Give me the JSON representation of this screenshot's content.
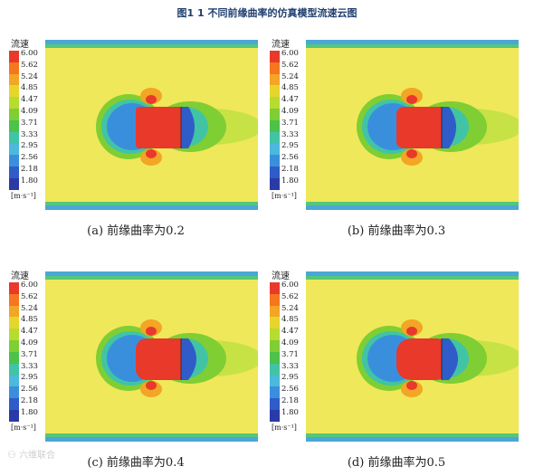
{
  "figure_title": "图1 1 不同前缘曲率的仿真模型流速云图",
  "legend": {
    "title": "流速",
    "unit": "[m·s⁻¹]",
    "values": [
      "6.00",
      "5.62",
      "5.24",
      "4.85",
      "4.47",
      "4.09",
      "3.71",
      "3.33",
      "2.95",
      "2.56",
      "2.18",
      "1.80"
    ],
    "colors": [
      "#e8392b",
      "#f5761f",
      "#f3a526",
      "#e6d62b",
      "#b7dc2f",
      "#7fce34",
      "#4cc24b",
      "#41c4a6",
      "#4cb8dc",
      "#3a8fdd",
      "#2f5cc8",
      "#2a3ba8"
    ]
  },
  "panels": [
    {
      "caption": "(a) 前缘曲率为0.2"
    },
    {
      "caption": "(b) 前缘曲率为0.3"
    },
    {
      "caption": "(c) 前缘曲率为0.4"
    },
    {
      "caption": "(d) 前缘曲率为0.5"
    }
  ],
  "watermark": "六维联合"
}
